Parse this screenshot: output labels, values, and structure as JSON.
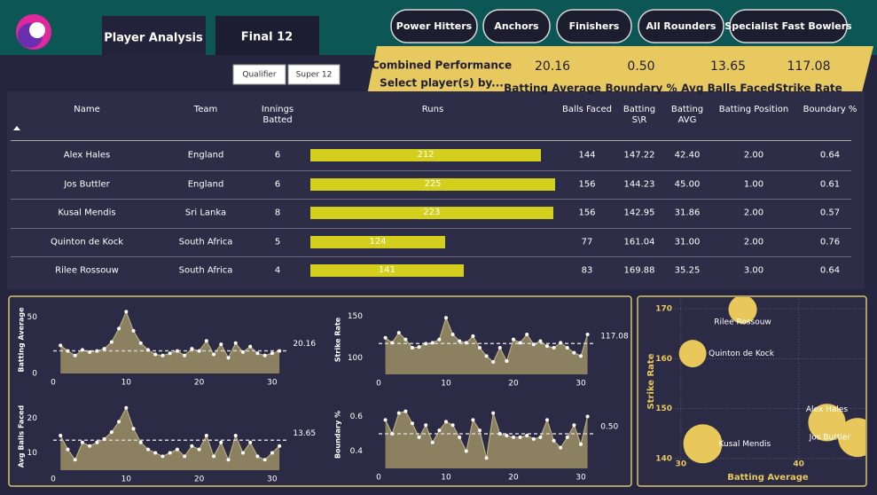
{
  "header": {
    "tabs": [
      "Player Analysis",
      "Final 12"
    ],
    "buttons": [
      "Power Hitters",
      "Anchors",
      "Finishers",
      "All Rounders",
      "Specialist Fast Bowlers"
    ],
    "slicer": [
      "Qualifier",
      "Super 12"
    ],
    "kpi_card": {
      "title": "Combined Performance",
      "subtitle": "Select player(s) by...",
      "kpis": [
        {
          "value": "20.16",
          "label": "Batting Average"
        },
        {
          "value": "0.50",
          "label": "Boundary %"
        },
        {
          "value": "13.65",
          "label": "Avg Balls Faced"
        },
        {
          "value": "117.08",
          "label": "Strike Rate"
        }
      ]
    }
  },
  "table": {
    "columns": [
      "Name",
      "Team",
      "Innings Batted",
      "Runs",
      "Balls Faced",
      "Batting S\\R",
      "Batting AVG",
      "Batting Position",
      "Boundary %"
    ],
    "rows": [
      [
        "Alex Hales",
        "England",
        6,
        212,
        144,
        "147.22",
        "42.40",
        "2.00",
        "0.64"
      ],
      [
        "Jos Buttler",
        "England",
        6,
        225,
        156,
        "144.23",
        "45.00",
        "1.00",
        "0.61"
      ],
      [
        "Kusal Mendis",
        "Sri Lanka",
        8,
        223,
        156,
        "142.95",
        "31.86",
        "2.00",
        "0.57"
      ],
      [
        "Quinton de Kock",
        "South Africa",
        5,
        124,
        77,
        "161.04",
        "31.00",
        "2.00",
        "0.76"
      ],
      [
        "Rilee Rossouw",
        "South Africa",
        4,
        141,
        83,
        "169.88",
        "35.25",
        "3.00",
        "0.64"
      ]
    ],
    "bar_color": "#d4cf1c"
  },
  "chart_data": [
    {
      "type": "area",
      "y_label": "Batting Average",
      "color": "#8b8060",
      "x": [
        1,
        2,
        3,
        4,
        5,
        6,
        7,
        8,
        9,
        10,
        11,
        12,
        13,
        14,
        15,
        16,
        17,
        18,
        19,
        20,
        21,
        22,
        23,
        24,
        25,
        26,
        27,
        28,
        29,
        30,
        31
      ],
      "values": [
        25,
        20,
        16,
        21,
        19,
        20,
        22,
        28,
        40,
        55,
        38,
        27,
        21,
        17,
        16,
        18,
        20,
        16,
        22,
        20,
        29,
        17,
        26,
        14,
        27,
        19,
        24,
        18,
        16,
        18,
        20
      ],
      "xlim": [
        0,
        32
      ],
      "xticks": [
        0,
        10,
        20,
        30
      ],
      "ylim": [
        0,
        60
      ],
      "yticks": [
        0,
        50
      ],
      "reference": {
        "value": 20.16,
        "label": "20.16"
      }
    },
    {
      "type": "area",
      "y_label": "Strike Rate",
      "color": "#8b8060",
      "x": [
        1,
        2,
        3,
        4,
        5,
        6,
        7,
        8,
        9,
        10,
        11,
        12,
        13,
        14,
        15,
        16,
        17,
        18,
        19,
        20,
        21,
        22,
        23,
        24,
        25,
        26,
        27,
        28,
        29,
        30,
        31
      ],
      "values": [
        124,
        118,
        130,
        122,
        112,
        113,
        117,
        118,
        122,
        148,
        128,
        120,
        118,
        126,
        112,
        102,
        95,
        112,
        96,
        122,
        118,
        128,
        116,
        120,
        114,
        112,
        118,
        112,
        106,
        102,
        128
      ],
      "xlim": [
        0,
        32
      ],
      "xticks": [
        0,
        10,
        20,
        30
      ],
      "ylim": [
        80,
        160
      ],
      "yticks": [
        100,
        150
      ],
      "reference": {
        "value": 117.08,
        "label": "117.08"
      }
    },
    {
      "type": "area",
      "y_label": "Avg Balls Faced",
      "color": "#8b8060",
      "x": [
        1,
        2,
        3,
        4,
        5,
        6,
        7,
        8,
        9,
        10,
        11,
        12,
        13,
        14,
        15,
        16,
        17,
        18,
        19,
        20,
        21,
        22,
        23,
        24,
        25,
        26,
        27,
        28,
        29,
        30,
        31
      ],
      "values": [
        15,
        11,
        8,
        13,
        12,
        13,
        14,
        16,
        19,
        23,
        17,
        13,
        11,
        10,
        9,
        10,
        11,
        9,
        12,
        11,
        15,
        9,
        13,
        8,
        15,
        10,
        13,
        9,
        8,
        10,
        12
      ],
      "xlim": [
        0,
        32
      ],
      "xticks": [
        0,
        10,
        20,
        30
      ],
      "ylim": [
        5,
        25
      ],
      "yticks": [
        10,
        20
      ],
      "reference": {
        "value": 13.65,
        "label": "13.65"
      }
    },
    {
      "type": "area",
      "y_label": "Boundary %",
      "color": "#8b8060",
      "x": [
        1,
        2,
        3,
        4,
        5,
        6,
        7,
        8,
        9,
        10,
        11,
        12,
        13,
        14,
        15,
        16,
        17,
        18,
        19,
        20,
        21,
        22,
        23,
        24,
        25,
        26,
        27,
        28,
        29,
        30,
        31
      ],
      "values": [
        0.58,
        0.5,
        0.62,
        0.63,
        0.56,
        0.48,
        0.55,
        0.45,
        0.52,
        0.57,
        0.55,
        0.48,
        0.4,
        0.58,
        0.52,
        0.36,
        0.62,
        0.5,
        0.49,
        0.48,
        0.48,
        0.49,
        0.47,
        0.48,
        0.58,
        0.46,
        0.42,
        0.48,
        0.55,
        0.44,
        0.6
      ],
      "xlim": [
        0,
        32
      ],
      "xticks": [
        0,
        10,
        20,
        30
      ],
      "ylim": [
        0.3,
        0.7
      ],
      "yticks": [
        0.4,
        0.6
      ],
      "reference": {
        "value": 0.5,
        "label": "0.50"
      }
    },
    {
      "type": "scatter",
      "x_label": "Batting Average",
      "y_label": "Strike Rate",
      "color": "#e8c85a",
      "points": [
        {
          "label": "Rilee Rossouw",
          "x": 35.25,
          "y": 169.88,
          "size": 83
        },
        {
          "label": "Quinton de Kock",
          "x": 31.0,
          "y": 161.04,
          "size": 77
        },
        {
          "label": "Alex Hales",
          "x": 42.4,
          "y": 147.22,
          "size": 144
        },
        {
          "label": "Kusal Mendis",
          "x": 31.86,
          "y": 142.95,
          "size": 156
        },
        {
          "label": "Jos Buttler",
          "x": 45.0,
          "y": 144.23,
          "size": 156
        }
      ],
      "xlim": [
        27,
        45.6
      ],
      "xticks": [
        30,
        40
      ],
      "ylim": [
        135,
        172
      ],
      "yticks": [
        140,
        150,
        160,
        170
      ],
      "grid": true
    }
  ]
}
